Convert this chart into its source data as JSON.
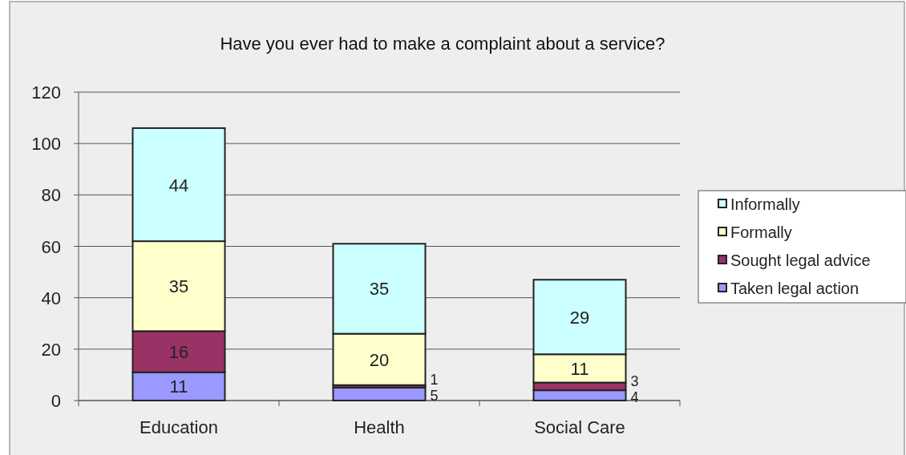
{
  "chart_data": {
    "type": "bar",
    "title": "Have you ever had to make a complaint about a service?",
    "categories": [
      "Education",
      "Health",
      "Social Care"
    ],
    "stacked": true,
    "data_labels": true,
    "ylim": [
      0,
      120
    ],
    "yticks": [
      0,
      20,
      40,
      60,
      80,
      100,
      120
    ],
    "grid": "y",
    "legend": "right",
    "series": [
      {
        "name": "Taken legal action",
        "color": "#9999ff",
        "values": [
          11,
          5,
          4
        ]
      },
      {
        "name": "Sought legal advice",
        "color": "#993366",
        "values": [
          16,
          1,
          3
        ]
      },
      {
        "name": "Formally",
        "color": "#ffffcc",
        "values": [
          35,
          20,
          11
        ]
      },
      {
        "name": "Informally",
        "color": "#ccffff",
        "values": [
          44,
          35,
          29
        ]
      }
    ]
  }
}
